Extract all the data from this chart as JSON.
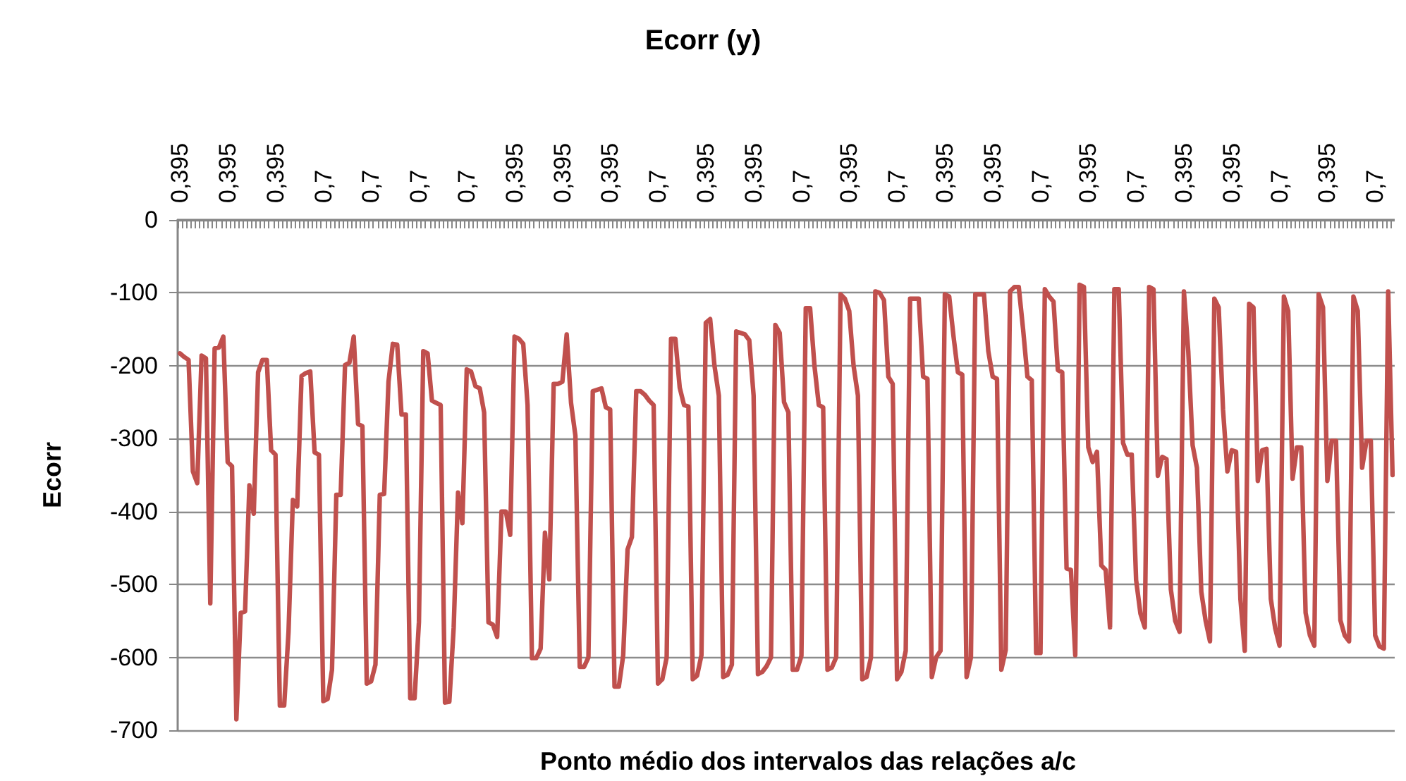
{
  "chart_data": {
    "type": "line",
    "title": "Ecorr (y)",
    "xlabel": "Ponto médio dos intervalos das relações a/c",
    "ylabel": "Ecorr",
    "categories": [
      "0,395",
      null,
      null,
      null,
      null,
      null,
      null,
      null,
      null,
      null,
      null,
      "0,395",
      null,
      null,
      null,
      null,
      null,
      null,
      null,
      null,
      null,
      null,
      "0,395",
      null,
      null,
      null,
      null,
      null,
      null,
      null,
      null,
      null,
      null,
      "0,7",
      null,
      null,
      null,
      null,
      null,
      null,
      null,
      null,
      null,
      null,
      "0,7",
      null,
      null,
      null,
      null,
      null,
      null,
      null,
      null,
      null,
      null,
      "0,7",
      null,
      null,
      null,
      null,
      null,
      null,
      null,
      null,
      null,
      null,
      "0,7",
      null,
      null,
      null,
      null,
      null,
      null,
      null,
      null,
      null,
      null,
      "0,395",
      null,
      null,
      null,
      null,
      null,
      null,
      null,
      null,
      null,
      null,
      "0,395",
      null,
      null,
      null,
      null,
      null,
      null,
      null,
      null,
      null,
      null,
      "0,395",
      null,
      null,
      null,
      null,
      null,
      null,
      null,
      null,
      null,
      null,
      "0,7",
      null,
      null,
      null,
      null,
      null,
      null,
      null,
      null,
      null,
      null,
      "0,395",
      null,
      null,
      null,
      null,
      null,
      null,
      null,
      null,
      null,
      null,
      "0,395",
      null,
      null,
      null,
      null,
      null,
      null,
      null,
      null,
      null,
      null,
      "0,7",
      null,
      null,
      null,
      null,
      null,
      null,
      null,
      null,
      null,
      null,
      "0,395",
      null,
      null,
      null,
      null,
      null,
      null,
      null,
      null,
      null,
      null,
      "0,7",
      null,
      null,
      null,
      null,
      null,
      null,
      null,
      null,
      null,
      null,
      "0,395",
      null,
      null,
      null,
      null,
      null,
      null,
      null,
      null,
      null,
      null,
      "0,395",
      null,
      null,
      null,
      null,
      null,
      null,
      null,
      null,
      null,
      null,
      "0,7",
      null,
      null,
      null,
      null,
      null,
      null,
      null,
      null,
      null,
      null,
      "0,395",
      null,
      null,
      null,
      null,
      null,
      null,
      null,
      null,
      null,
      null,
      "0,7",
      null,
      null,
      null,
      null,
      null,
      null,
      null,
      null,
      null,
      null,
      "0,395",
      null,
      null,
      null,
      null,
      null,
      null,
      null,
      null,
      null,
      null,
      "0,395",
      null,
      null,
      null,
      null,
      null,
      null,
      null,
      null,
      null,
      null,
      "0,7",
      null,
      null,
      null,
      null,
      null,
      null,
      null,
      null,
      null,
      null,
      "0,395",
      null,
      null,
      null,
      null,
      null,
      null,
      null,
      null,
      null,
      null,
      "0,7",
      null,
      null,
      null,
      null
    ],
    "series": [
      {
        "color": "#c0504d",
        "values": [
          -183,
          -188,
          -192,
          -345,
          -361,
          -186,
          -190,
          -526,
          -176,
          -175,
          -160,
          -332,
          -338,
          -685,
          -539,
          -537,
          -364,
          -403,
          -209,
          -192,
          -192,
          -316,
          -322,
          -666,
          -666,
          -565,
          -384,
          -393,
          -214,
          -210,
          -208,
          -319,
          -322,
          -660,
          -657,
          -617,
          -377,
          -377,
          -199,
          -196,
          -160,
          -280,
          -283,
          -636,
          -633,
          -610,
          -377,
          -376,
          -222,
          -170,
          -171,
          -267,
          -267,
          -656,
          -656,
          -552,
          -180,
          -183,
          -248,
          -251,
          -254,
          -662,
          -661,
          -559,
          -374,
          -416,
          -205,
          -208,
          -228,
          -231,
          -264,
          -552,
          -555,
          -572,
          -400,
          -400,
          -432,
          -160,
          -163,
          -170,
          -254,
          -601,
          -601,
          -588,
          -429,
          -493,
          -225,
          -225,
          -222,
          -157,
          -251,
          -296,
          -613,
          -613,
          -600,
          -235,
          -233,
          -231,
          -257,
          -260,
          -640,
          -640,
          -597,
          -452,
          -435,
          -235,
          -235,
          -240,
          -248,
          -254,
          -636,
          -630,
          -600,
          -163,
          -163,
          -230,
          -254,
          -256,
          -630,
          -625,
          -597,
          -141,
          -136,
          -200,
          -241,
          -627,
          -624,
          -610,
          -153,
          -155,
          -157,
          -165,
          -241,
          -623,
          -620,
          -612,
          -600,
          -144,
          -155,
          -250,
          -264,
          -617,
          -617,
          -598,
          -121,
          -121,
          -200,
          -254,
          -257,
          -617,
          -614,
          -600,
          -102,
          -108,
          -125,
          -200,
          -241,
          -630,
          -627,
          -600,
          -98,
          -100,
          -110,
          -215,
          -225,
          -630,
          -620,
          -591,
          -108,
          -108,
          -108,
          -215,
          -218,
          -627,
          -600,
          -591,
          -102,
          -105,
          -160,
          -209,
          -212,
          -627,
          -600,
          -102,
          -102,
          -102,
          -180,
          -215,
          -218,
          -617,
          -590,
          -98,
          -92,
          -92,
          -150,
          -215,
          -220,
          -594,
          -594,
          -95,
          -105,
          -112,
          -206,
          -209,
          -478,
          -480,
          -597,
          -89,
          -92,
          -312,
          -332,
          -318,
          -474,
          -480,
          -559,
          -95,
          -95,
          -306,
          -322,
          -322,
          -494,
          -540,
          -559,
          -92,
          -95,
          -351,
          -325,
          -328,
          -507,
          -550,
          -565,
          -98,
          -180,
          -309,
          -340,
          -510,
          -550,
          -578,
          -108,
          -120,
          -260,
          -345,
          -316,
          -318,
          -520,
          -591,
          -115,
          -120,
          -358,
          -316,
          -314,
          -520,
          -560,
          -584,
          -105,
          -125,
          -355,
          -312,
          -312,
          -539,
          -570,
          -584,
          -102,
          -120,
          -358,
          -303,
          -303,
          -549,
          -570,
          -578,
          -105,
          -125,
          -340,
          -303,
          -303,
          -570,
          -585,
          -588,
          -98,
          -350
        ]
      }
    ],
    "ylim": [
      -700,
      0
    ],
    "yticks": [
      0,
      -100,
      -200,
      -300,
      -400,
      -500,
      -600,
      -700
    ],
    "grid": "y",
    "marker": "none",
    "line_style": "solid"
  }
}
